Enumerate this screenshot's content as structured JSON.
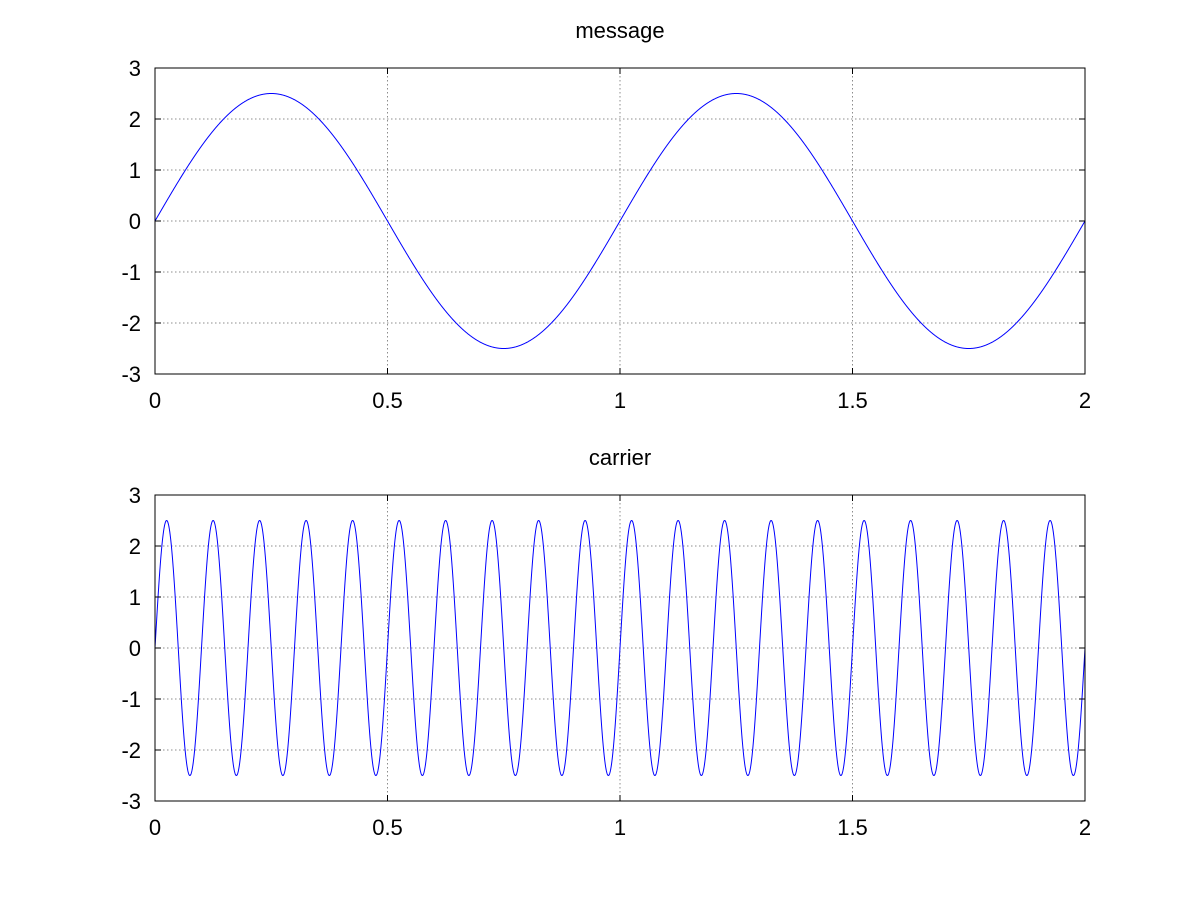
{
  "chart_data": [
    {
      "type": "line",
      "title": "message",
      "xlabel": "",
      "ylabel": "",
      "xlim": [
        0,
        2
      ],
      "ylim": [
        -3,
        3
      ],
      "xticks": [
        0,
        0.5,
        1,
        1.5,
        2
      ],
      "xtick_labels": [
        "0",
        "0.5",
        "1",
        "1.5",
        "2"
      ],
      "yticks": [
        -3,
        -2,
        -1,
        0,
        1,
        2,
        3
      ],
      "ytick_labels": [
        "-3",
        "-2",
        "-1",
        "0",
        "1",
        "2",
        "3"
      ],
      "grid": true,
      "series": [
        {
          "color": "#0000ff",
          "amplitude": 2.5,
          "frequency": 1
        }
      ]
    },
    {
      "type": "line",
      "title": "carrier",
      "xlabel": "",
      "ylabel": "",
      "xlim": [
        0,
        2
      ],
      "ylim": [
        -3,
        3
      ],
      "xticks": [
        0,
        0.5,
        1,
        1.5,
        2
      ],
      "xtick_labels": [
        "0",
        "0.5",
        "1",
        "1.5",
        "2"
      ],
      "yticks": [
        -3,
        -2,
        -1,
        0,
        1,
        2,
        3
      ],
      "ytick_labels": [
        "-3",
        "-2",
        "-1",
        "0",
        "1",
        "2",
        "3"
      ],
      "grid": true,
      "series": [
        {
          "color": "#0000ff",
          "amplitude": 2.5,
          "frequency": 10
        }
      ]
    }
  ]
}
